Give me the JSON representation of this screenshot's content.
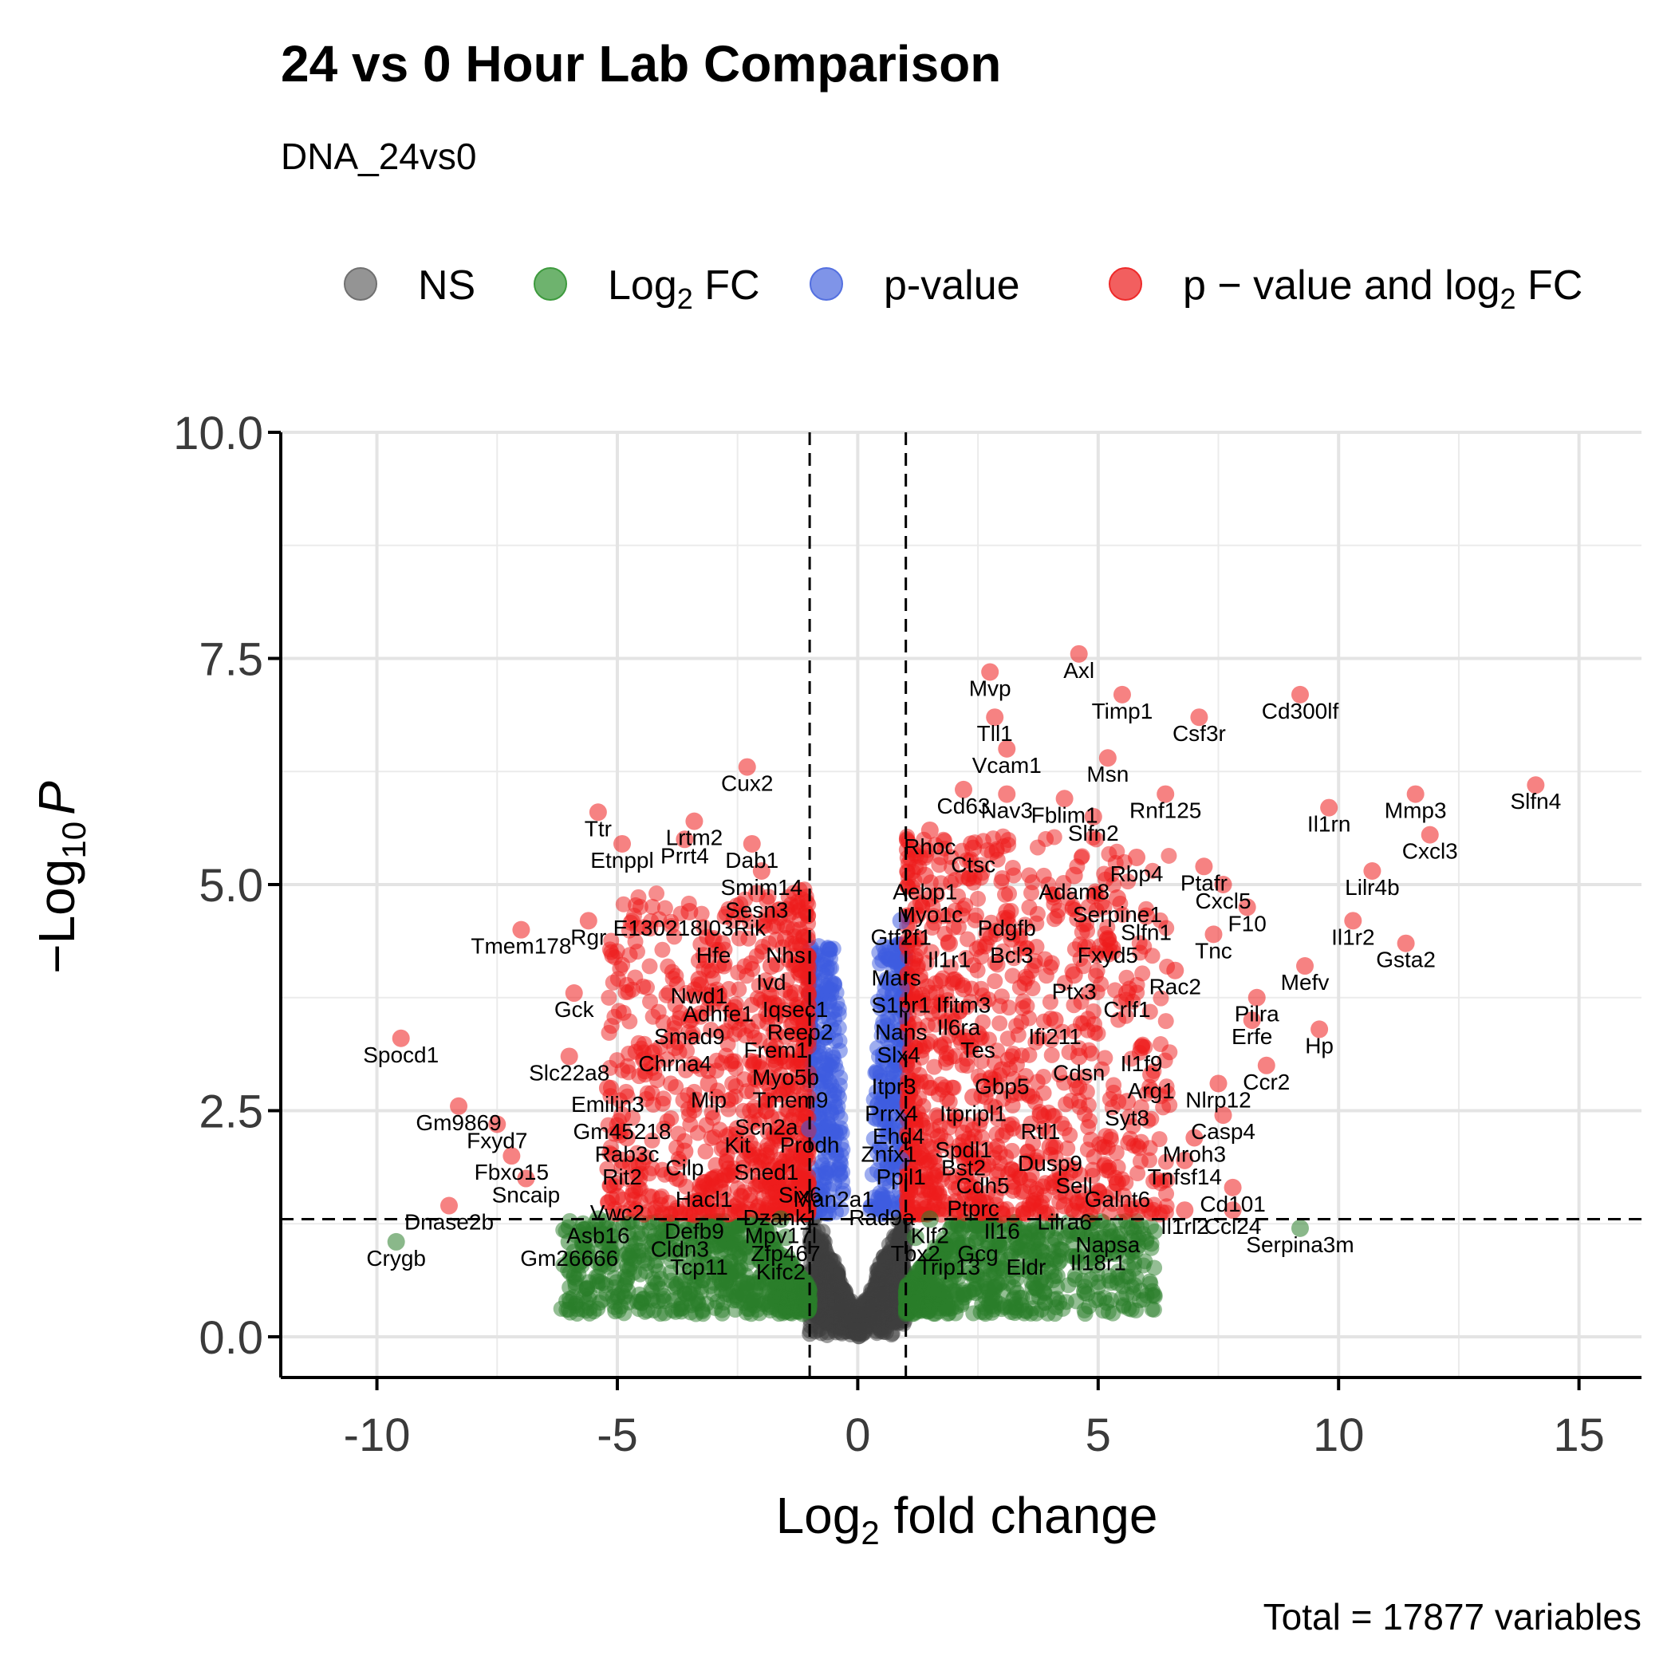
{
  "chart_data": {
    "type": "scatter",
    "title": "24 vs 0 Hour Lab Comparison",
    "subtitle": "DNA_24vs0",
    "caption": "Total = 17877 variables",
    "xlabel": {
      "base": "Log",
      "sub": "2",
      "rest": " fold change"
    },
    "ylabel": {
      "prefix": "−Log",
      "sub": "10",
      "italic": "P"
    },
    "xlim": [
      -12,
      16.3
    ],
    "ylim": [
      -0.45,
      10.0
    ],
    "x_ticks": [
      {
        "value": -10,
        "label": "-10"
      },
      {
        "value": -5,
        "label": "-5"
      },
      {
        "value": 0,
        "label": "0"
      },
      {
        "value": 5,
        "label": "5"
      },
      {
        "value": 10,
        "label": "10"
      },
      {
        "value": 15,
        "label": "15"
      }
    ],
    "y_ticks": [
      {
        "value": 0,
        "label": "0.0"
      },
      {
        "value": 2.5,
        "label": "2.5"
      },
      {
        "value": 5,
        "label": "5.0"
      },
      {
        "value": 7.5,
        "label": "7.5"
      },
      {
        "value": 10,
        "label": "10.0"
      }
    ],
    "fc_cutoff": 1,
    "p_cutoff_line": 1.3,
    "grid": true,
    "legend_position": "top",
    "legend": [
      {
        "key": "ns",
        "label": "NS",
        "color": "#707070"
      },
      {
        "key": "fc",
        "label": "Log",
        "sub": "2",
        "rest": " FC",
        "color": "#3d9a3d"
      },
      {
        "key": "p",
        "label": "p-value",
        "color": "#5470e0"
      },
      {
        "key": "both",
        "label": "p − value and log",
        "sub": "2",
        "rest": " FC",
        "color": "#ee2a2a"
      }
    ],
    "colors": {
      "ns": "#3d3d3d",
      "fc": "#2a7d2a",
      "p": "#3e5ce0",
      "both": "#ee1c1c"
    },
    "labeled_points": [
      {
        "gene": "Axl",
        "x": 4.6,
        "y": 7.55
      },
      {
        "gene": "Mvp",
        "x": 2.75,
        "y": 7.35
      },
      {
        "gene": "Tll1",
        "x": 2.85,
        "y": 6.85
      },
      {
        "gene": "Timp1",
        "x": 5.5,
        "y": 7.1
      },
      {
        "gene": "Cd300lf",
        "x": 9.2,
        "y": 7.1
      },
      {
        "gene": "Csf3r",
        "x": 7.1,
        "y": 6.85
      },
      {
        "gene": "Vcam1",
        "x": 3.1,
        "y": 6.5
      },
      {
        "gene": "Msn",
        "x": 5.2,
        "y": 6.4
      },
      {
        "gene": "Cd63",
        "x": 2.2,
        "y": 6.05
      },
      {
        "gene": "Nav3",
        "x": 3.1,
        "y": 6.0
      },
      {
        "gene": "Fblim1",
        "x": 4.3,
        "y": 5.95
      },
      {
        "gene": "Rnf125",
        "x": 6.4,
        "y": 6.0
      },
      {
        "gene": "Slfn2",
        "x": 4.9,
        "y": 5.75
      },
      {
        "gene": "Slfn4",
        "x": 14.1,
        "y": 6.1
      },
      {
        "gene": "Il1rn",
        "x": 9.8,
        "y": 5.85
      },
      {
        "gene": "Mmp3",
        "x": 11.6,
        "y": 6.0
      },
      {
        "gene": "Rhoc",
        "x": 1.5,
        "y": 5.6
      },
      {
        "gene": "Rbp4",
        "x": 5.8,
        "y": 5.3
      },
      {
        "gene": "Cxcl3",
        "x": 11.9,
        "y": 5.55
      },
      {
        "gene": "Ctsc",
        "x": 2.4,
        "y": 5.4
      },
      {
        "gene": "Ptafr",
        "x": 7.2,
        "y": 5.2
      },
      {
        "gene": "Aebp1",
        "x": 1.4,
        "y": 5.1
      },
      {
        "gene": "Adam8",
        "x": 4.5,
        "y": 5.1
      },
      {
        "gene": "Lilr4b",
        "x": 10.7,
        "y": 5.15
      },
      {
        "gene": "Cxcl5",
        "x": 7.6,
        "y": 5.0
      },
      {
        "gene": "Myo1c",
        "x": 1.5,
        "y": 4.85
      },
      {
        "gene": "Serpine1",
        "x": 5.4,
        "y": 4.85
      },
      {
        "gene": "F10",
        "x": 8.1,
        "y": 4.75
      },
      {
        "gene": "Gtf2f1",
        "x": 0.9,
        "y": 4.6
      },
      {
        "gene": "Pdgfb",
        "x": 3.1,
        "y": 4.7
      },
      {
        "gene": "Slfn1",
        "x": 6.0,
        "y": 4.65
      },
      {
        "gene": "Il1r2",
        "x": 10.3,
        "y": 4.6
      },
      {
        "gene": "Il1r1",
        "x": 1.9,
        "y": 4.35
      },
      {
        "gene": "Bcl3",
        "x": 3.2,
        "y": 4.4
      },
      {
        "gene": "Fxyd5",
        "x": 5.2,
        "y": 4.4
      },
      {
        "gene": "Tnc",
        "x": 7.4,
        "y": 4.45
      },
      {
        "gene": "Gsta2",
        "x": 11.4,
        "y": 4.35
      },
      {
        "gene": "Mars",
        "x": 0.8,
        "y": 4.15
      },
      {
        "gene": "Rac2",
        "x": 6.6,
        "y": 4.05
      },
      {
        "gene": "Mefv",
        "x": 9.3,
        "y": 4.1
      },
      {
        "gene": "Ptx3",
        "x": 4.5,
        "y": 4.0
      },
      {
        "gene": "S1pr1",
        "x": 0.9,
        "y": 3.85
      },
      {
        "gene": "Ifitm3",
        "x": 2.2,
        "y": 3.85
      },
      {
        "gene": "Crlf1",
        "x": 5.6,
        "y": 3.8
      },
      {
        "gene": "Pilra",
        "x": 8.3,
        "y": 3.75
      },
      {
        "gene": "Nans",
        "x": 0.9,
        "y": 3.55
      },
      {
        "gene": "Il6ra",
        "x": 2.1,
        "y": 3.6
      },
      {
        "gene": "Ifi211",
        "x": 4.1,
        "y": 3.5
      },
      {
        "gene": "Hp",
        "x": 9.6,
        "y": 3.4
      },
      {
        "gene": "Erfe",
        "x": 8.2,
        "y": 3.5
      },
      {
        "gene": "Slx4",
        "x": 0.85,
        "y": 3.3
      },
      {
        "gene": "Tes",
        "x": 2.5,
        "y": 3.35
      },
      {
        "gene": "Il1f9",
        "x": 5.9,
        "y": 3.2
      },
      {
        "gene": "Cdsn",
        "x": 4.6,
        "y": 3.1
      },
      {
        "gene": "Ccr2",
        "x": 8.5,
        "y": 3.0
      },
      {
        "gene": "Itpr3",
        "x": 0.75,
        "y": 2.95
      },
      {
        "gene": "Gbp5",
        "x": 3.0,
        "y": 2.95
      },
      {
        "gene": "Arg1",
        "x": 6.1,
        "y": 2.9
      },
      {
        "gene": "Nlrp12",
        "x": 7.5,
        "y": 2.8
      },
      {
        "gene": "Prrx4",
        "x": 0.7,
        "y": 2.65
      },
      {
        "gene": "Itpripl1",
        "x": 2.4,
        "y": 2.65
      },
      {
        "gene": "Syt8",
        "x": 5.6,
        "y": 2.6
      },
      {
        "gene": "Rtl1",
        "x": 3.8,
        "y": 2.45
      },
      {
        "gene": "Casp4",
        "x": 7.6,
        "y": 2.45
      },
      {
        "gene": "Ehd4",
        "x": 0.85,
        "y": 2.4
      },
      {
        "gene": "Spdl1",
        "x": 2.2,
        "y": 2.25
      },
      {
        "gene": "Mroh3",
        "x": 7.0,
        "y": 2.2
      },
      {
        "gene": "Znfx1",
        "x": 0.65,
        "y": 2.2
      },
      {
        "gene": "Dusp9",
        "x": 4.0,
        "y": 2.1
      },
      {
        "gene": "Bst2",
        "x": 2.2,
        "y": 2.05
      },
      {
        "gene": "Tnfsf14",
        "x": 6.8,
        "y": 1.95
      },
      {
        "gene": "Ppil1",
        "x": 0.9,
        "y": 1.95
      },
      {
        "gene": "Cdh5",
        "x": 2.6,
        "y": 1.85
      },
      {
        "gene": "Sell",
        "x": 4.5,
        "y": 1.85
      },
      {
        "gene": "Man2a1",
        "x": -0.5,
        "y": 1.7
      },
      {
        "gene": "Galnt6",
        "x": 5.4,
        "y": 1.7
      },
      {
        "gene": "Cd101",
        "x": 7.8,
        "y": 1.65
      },
      {
        "gene": "Rad9a",
        "x": 0.5,
        "y": 1.5
      },
      {
        "gene": "Ptprc",
        "x": 2.4,
        "y": 1.6
      },
      {
        "gene": "Lilra6",
        "x": 4.3,
        "y": 1.45
      },
      {
        "gene": "Il1rl2",
        "x": 6.8,
        "y": 1.4
      },
      {
        "gene": "Ccl24",
        "x": 7.8,
        "y": 1.4
      },
      {
        "gene": "Il16",
        "x": 3.0,
        "y": 1.35
      },
      {
        "gene": "Klf2",
        "x": 1.5,
        "y": 1.3
      },
      {
        "gene": "Napsa",
        "x": 5.2,
        "y": 1.2
      },
      {
        "gene": "Serpina3m",
        "x": 9.2,
        "y": 1.2
      },
      {
        "gene": "Tbx2",
        "x": 1.2,
        "y": 1.1
      },
      {
        "gene": "Gcg",
        "x": 2.5,
        "y": 1.1
      },
      {
        "gene": "Il18r1",
        "x": 5.0,
        "y": 1.0
      },
      {
        "gene": "Trip13",
        "x": 1.9,
        "y": 0.95
      },
      {
        "gene": "Eldr",
        "x": 3.5,
        "y": 0.95
      },
      {
        "gene": "Cux2",
        "x": -2.3,
        "y": 6.3
      },
      {
        "gene": "Ttr",
        "x": -5.4,
        "y": 5.8
      },
      {
        "gene": "Lrtm2",
        "x": -3.4,
        "y": 5.7
      },
      {
        "gene": "Etnppl",
        "x": -4.9,
        "y": 5.45
      },
      {
        "gene": "Prrt4",
        "x": -3.6,
        "y": 5.5
      },
      {
        "gene": "Dab1",
        "x": -2.2,
        "y": 5.45
      },
      {
        "gene": "Smim14",
        "x": -2.0,
        "y": 5.15
      },
      {
        "gene": "Sesn3",
        "x": -2.1,
        "y": 4.9
      },
      {
        "gene": "Rgr",
        "x": -5.6,
        "y": 4.6
      },
      {
        "gene": "E130218I03Rik",
        "x": -3.5,
        "y": 4.7
      },
      {
        "gene": "Tmem178",
        "x": -7.0,
        "y": 4.5
      },
      {
        "gene": "Hfe",
        "x": -3.0,
        "y": 4.4
      },
      {
        "gene": "Nhs",
        "x": -1.5,
        "y": 4.4
      },
      {
        "gene": "Ivd",
        "x": -1.8,
        "y": 4.1
      },
      {
        "gene": "Nwd1",
        "x": -3.3,
        "y": 3.95
      },
      {
        "gene": "Iqsec1",
        "x": -1.3,
        "y": 3.8
      },
      {
        "gene": "Gck",
        "x": -5.9,
        "y": 3.8
      },
      {
        "gene": "Adhfe1",
        "x": -2.9,
        "y": 3.75
      },
      {
        "gene": "Reep2",
        "x": -1.2,
        "y": 3.55
      },
      {
        "gene": "Smad9",
        "x": -3.5,
        "y": 3.5
      },
      {
        "gene": "Frem1",
        "x": -1.7,
        "y": 3.35
      },
      {
        "gene": "Spocd1",
        "x": -9.5,
        "y": 3.3
      },
      {
        "gene": "Chrna4",
        "x": -3.8,
        "y": 3.2
      },
      {
        "gene": "Slc22a8",
        "x": -6.0,
        "y": 3.1
      },
      {
        "gene": "Myo5b",
        "x": -1.5,
        "y": 3.05
      },
      {
        "gene": "Mip",
        "x": -3.1,
        "y": 2.8
      },
      {
        "gene": "Tmem9",
        "x": -1.4,
        "y": 2.8
      },
      {
        "gene": "Emilin3",
        "x": -5.2,
        "y": 2.75
      },
      {
        "gene": "Gm9869",
        "x": -8.3,
        "y": 2.55
      },
      {
        "gene": "Gm45218",
        "x": -4.9,
        "y": 2.45
      },
      {
        "gene": "Scn2a",
        "x": -1.9,
        "y": 2.5
      },
      {
        "gene": "Fxyd7",
        "x": -7.5,
        "y": 2.35
      },
      {
        "gene": "Kit",
        "x": -2.5,
        "y": 2.3
      },
      {
        "gene": "Prodh",
        "x": -1.0,
        "y": 2.3
      },
      {
        "gene": "Rab3c",
        "x": -4.8,
        "y": 2.2
      },
      {
        "gene": "Fbxo15",
        "x": -7.2,
        "y": 2.0
      },
      {
        "gene": "Rit2",
        "x": -4.9,
        "y": 1.95
      },
      {
        "gene": "Cilp",
        "x": -3.6,
        "y": 2.05
      },
      {
        "gene": "Sned1",
        "x": -1.9,
        "y": 2.0
      },
      {
        "gene": "Sncaip",
        "x": -6.9,
        "y": 1.75
      },
      {
        "gene": "Six6",
        "x": -1.2,
        "y": 1.75
      },
      {
        "gene": "Hacl1",
        "x": -3.2,
        "y": 1.7
      },
      {
        "gene": "Vwc2",
        "x": -5.0,
        "y": 1.55
      },
      {
        "gene": "Dzank1",
        "x": -1.6,
        "y": 1.5
      },
      {
        "gene": "Dnase2b",
        "x": -8.5,
        "y": 1.45
      },
      {
        "gene": "Defb9",
        "x": -3.4,
        "y": 1.35
      },
      {
        "gene": "Asb16",
        "x": -5.4,
        "y": 1.3
      },
      {
        "gene": "Mpv17l",
        "x": -1.6,
        "y": 1.3
      },
      {
        "gene": "Cldn3",
        "x": -3.7,
        "y": 1.15
      },
      {
        "gene": "Zfp467",
        "x": -1.5,
        "y": 1.1
      },
      {
        "gene": "Crygb",
        "x": -9.6,
        "y": 1.05
      },
      {
        "gene": "Gm26666",
        "x": -6.0,
        "y": 1.05
      },
      {
        "gene": "Tcp11",
        "x": -3.3,
        "y": 0.95
      },
      {
        "gene": "Kifc2",
        "x": -1.6,
        "y": 0.9
      }
    ]
  }
}
